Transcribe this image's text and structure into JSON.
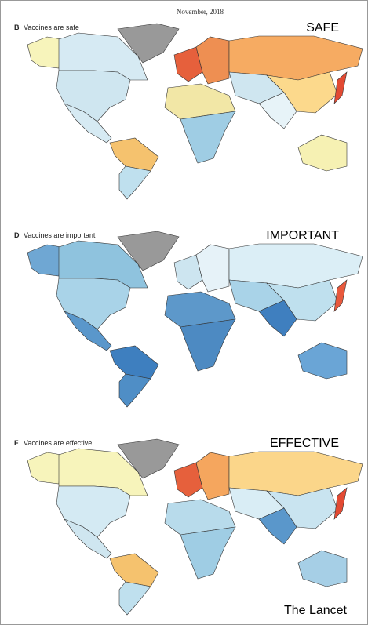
{
  "header": {
    "date": "November, 2018"
  },
  "panels": [
    {
      "letter": "B",
      "caption": "Vaccines are safe",
      "label": "SAFE"
    },
    {
      "letter": "D",
      "caption": "Vaccines are important",
      "label": "IMPORTANT"
    },
    {
      "letter": "F",
      "caption": "Vaccines are effective",
      "label": "EFFECTIVE"
    }
  ],
  "footer": {
    "source": "The Lancet"
  }
}
